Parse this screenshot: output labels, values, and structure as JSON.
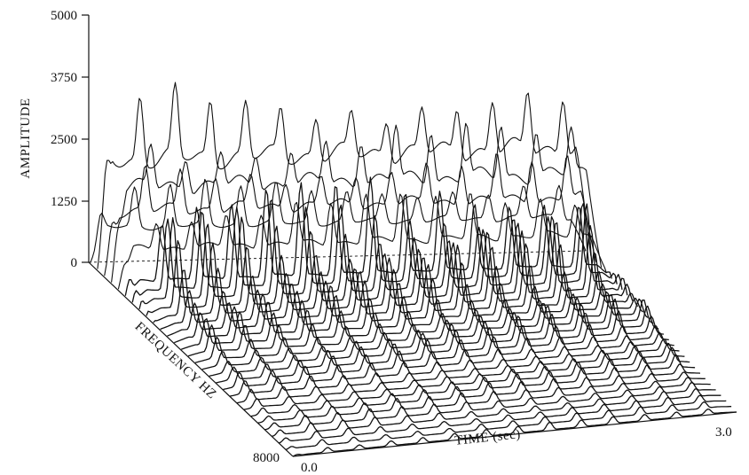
{
  "chart_data": {
    "type": "waterfall",
    "title": "",
    "ylabel": "AMPLITUDE",
    "xlabel": "TIME (sec)",
    "zlabel": "FREQUENCY HZ",
    "y_ticks": [
      "0",
      "1250",
      "2500",
      "3750",
      "5000"
    ],
    "y_tick_values": [
      0,
      1250,
      2500,
      3750,
      5000
    ],
    "ylim": [
      0,
      5000
    ],
    "x_ticks": [
      "0.0",
      "3.0"
    ],
    "xlim": [
      0,
      3.0
    ],
    "z_ticks": [
      "8000"
    ],
    "zlim": [
      0,
      8000
    ],
    "trace_count": 30,
    "pulse_count": 14,
    "series": [
      {
        "frequency_index": 0,
        "peak_amplitude": 1500,
        "base_amplitude": 700
      },
      {
        "frequency_index": 1,
        "peak_amplitude": 3500,
        "base_amplitude": 2200
      },
      {
        "frequency_index": 2,
        "peak_amplitude": 2300,
        "base_amplitude": 1300
      },
      {
        "frequency_index": 3,
        "peak_amplitude": 3100,
        "base_amplitude": 1900
      },
      {
        "frequency_index": 4,
        "peak_amplitude": 1800,
        "base_amplitude": 800
      },
      {
        "frequency_index": 5,
        "peak_amplitude": 2200,
        "base_amplitude": 300
      },
      {
        "frequency_index": 6,
        "peak_amplitude": 1900,
        "base_amplitude": 250
      },
      {
        "frequency_index": 7,
        "peak_amplitude": 1700,
        "base_amplitude": 200
      },
      {
        "frequency_index": 8,
        "peak_amplitude": 1500,
        "base_amplitude": 150
      },
      {
        "frequency_index": 9,
        "peak_amplitude": 1300,
        "base_amplitude": 130
      },
      {
        "frequency_index": 10,
        "peak_amplitude": 1100,
        "base_amplitude": 110
      },
      {
        "frequency_index": 11,
        "peak_amplitude": 950,
        "base_amplitude": 100
      },
      {
        "frequency_index": 12,
        "peak_amplitude": 800,
        "base_amplitude": 90
      },
      {
        "frequency_index": 13,
        "peak_amplitude": 700,
        "base_amplitude": 80
      },
      {
        "frequency_index": 14,
        "peak_amplitude": 600,
        "base_amplitude": 70
      },
      {
        "frequency_index": 15,
        "peak_amplitude": 520,
        "base_amplitude": 60
      },
      {
        "frequency_index": 16,
        "peak_amplitude": 460,
        "base_amplitude": 55
      },
      {
        "frequency_index": 17,
        "peak_amplitude": 420,
        "base_amplitude": 50
      },
      {
        "frequency_index": 18,
        "peak_amplitude": 380,
        "base_amplitude": 45
      },
      {
        "frequency_index": 19,
        "peak_amplitude": 350,
        "base_amplitude": 40
      },
      {
        "frequency_index": 20,
        "peak_amplitude": 320,
        "base_amplitude": 38
      },
      {
        "frequency_index": 21,
        "peak_amplitude": 300,
        "base_amplitude": 35
      },
      {
        "frequency_index": 22,
        "peak_amplitude": 280,
        "base_amplitude": 33
      },
      {
        "frequency_index": 23,
        "peak_amplitude": 260,
        "base_amplitude": 30
      },
      {
        "frequency_index": 24,
        "peak_amplitude": 240,
        "base_amplitude": 28
      },
      {
        "frequency_index": 25,
        "peak_amplitude": 220,
        "base_amplitude": 26
      },
      {
        "frequency_index": 26,
        "peak_amplitude": 200,
        "base_amplitude": 24
      },
      {
        "frequency_index": 27,
        "peak_amplitude": 190,
        "base_amplitude": 22
      },
      {
        "frequency_index": 28,
        "peak_amplitude": 180,
        "base_amplitude": 20
      },
      {
        "frequency_index": 29,
        "peak_amplitude": 170,
        "base_amplitude": 18
      }
    ]
  }
}
